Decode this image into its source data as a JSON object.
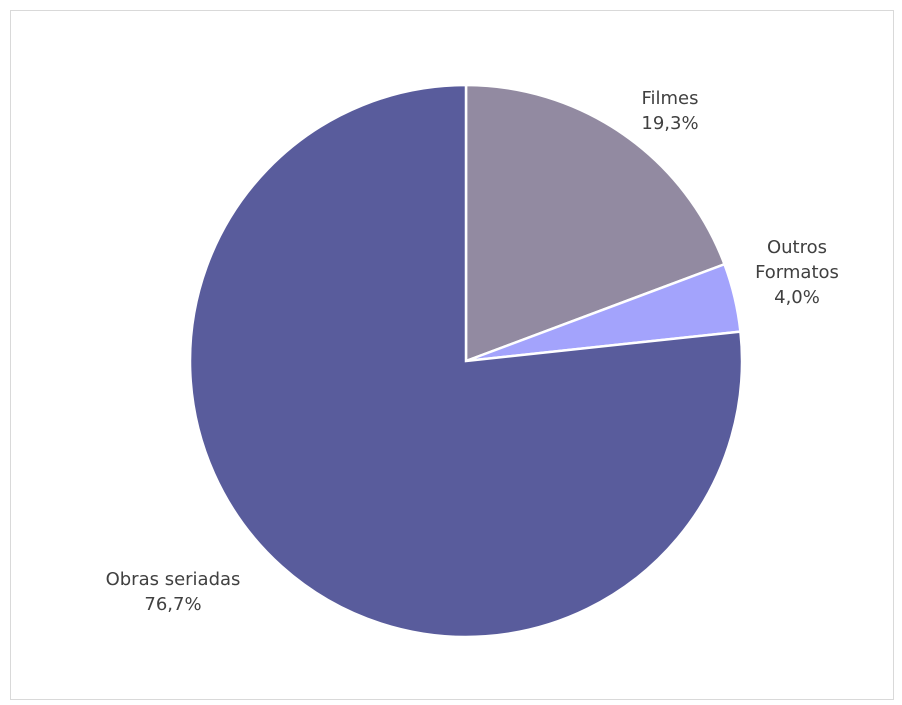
{
  "chart_data": {
    "type": "pie",
    "title": "",
    "categories": [
      "Filmes",
      "Outros Formatos",
      "Obras seriadas"
    ],
    "values": [
      19.3,
      4.0,
      76.7
    ],
    "value_labels": [
      "19,3%",
      "4,0%",
      "76,7%"
    ],
    "label_lines": [
      [
        "Filmes",
        "19,3%"
      ],
      [
        "Outros",
        "Formatos",
        "4,0%"
      ],
      [
        "Obras seriadas",
        "76,7%"
      ]
    ],
    "colors": [
      "#928aa1",
      "#a3a3fc",
      "#595c9c"
    ],
    "legend": "none",
    "start_angle_deg": 0,
    "direction": "clockwise"
  }
}
